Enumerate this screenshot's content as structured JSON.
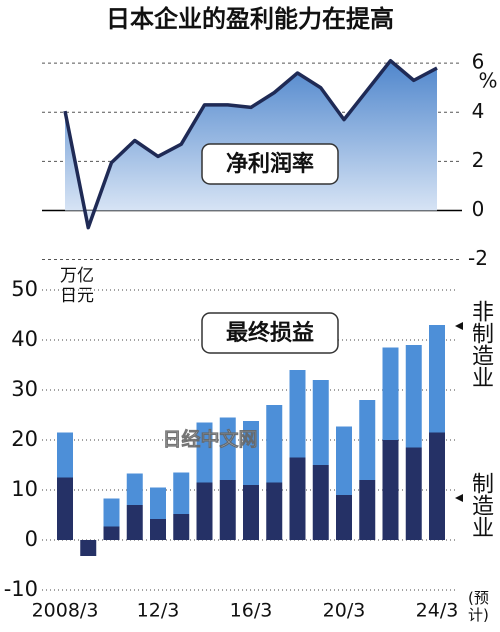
{
  "title": "日本企业的盈利能力在提高",
  "watermark": "日经中文网",
  "chart_data": [
    {
      "type": "line",
      "label": "净利润率",
      "unit": "%",
      "color": "#1f2a55",
      "fill": "#5b8fd3",
      "values": [
        4.05,
        -0.7,
        1.95,
        2.85,
        2.2,
        2.7,
        4.3,
        4.3,
        4.2,
        4.8,
        5.6,
        5.0,
        3.7,
        4.9,
        6.1,
        5.3,
        5.8
      ],
      "ylim": [
        -2.1,
        6.7
      ],
      "yticks": [
        -2,
        0,
        2,
        4,
        6
      ],
      "grid": true
    },
    {
      "type": "stacked_bar",
      "label": "最终损益",
      "y_label": "万亿日元",
      "note": "(预计)",
      "categories": [
        "2008/3",
        null,
        null,
        null,
        "12/3",
        null,
        null,
        null,
        "16/3",
        null,
        null,
        null,
        "20/3",
        null,
        null,
        null,
        "24/3"
      ],
      "series": [
        {
          "name": "制造业",
          "color": "#253166",
          "values": [
            12.5,
            -3.2,
            2.7,
            7,
            4.2,
            5.2,
            11.5,
            12,
            11,
            11.5,
            16.5,
            15,
            9,
            12,
            20,
            18.5,
            21.5
          ]
        },
        {
          "name": "非制造业",
          "color": "#4d8fd8",
          "values": [
            9,
            null,
            5.6,
            6.3,
            6.3,
            8.3,
            12,
            12.5,
            12.8,
            15.5,
            17.5,
            17,
            13.7,
            16,
            18.5,
            20.5,
            21.5
          ]
        }
      ],
      "ylim": [
        -10,
        50
      ],
      "yticks": [
        -10,
        0,
        10,
        20,
        30,
        40,
        50
      ],
      "grid": true
    }
  ]
}
